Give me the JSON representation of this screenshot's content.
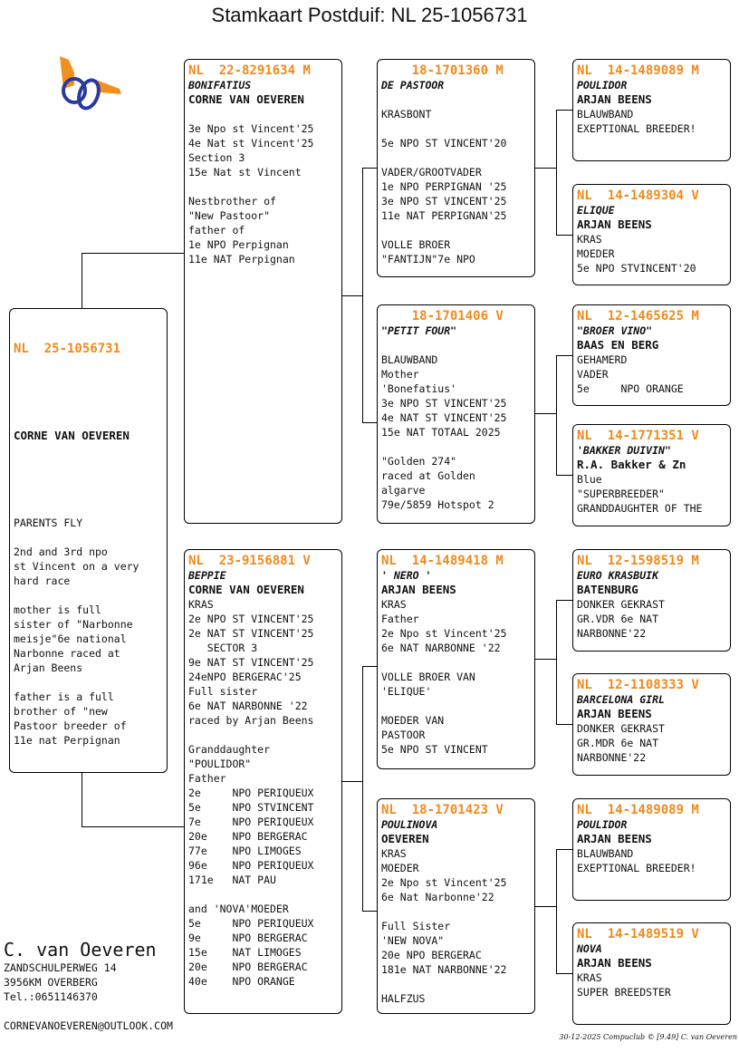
{
  "title": "Stamkaart Postduif: NL  25-1056731",
  "logo": {
    "colors": {
      "orange": "#f0901e",
      "blue": "#2a3a9c"
    }
  },
  "main": {
    "ring": "NL  25-1056731",
    "owner": "CORNE VAN OEVEREN",
    "text": "PARENTS FLY\n\n2nd and 3rd npo\nst Vincent on a very\nhard race\n\nmother is full\nsister of \"Narbonne\nmeisje\"6e national\nNarbonne raced at\nArjan Beens\n\nfather is a full\nbrother of \"new\nPastoor breeder of\n11e nat Perpignan"
  },
  "sire": {
    "ring": "NL  22-8291634 M",
    "name": "BONIFATIUS",
    "owner": "CORNE VAN OEVEREN",
    "text": "\n3e Npo st Vincent'25\n4e Nat st Vincent'25\nSection 3\n15e Nat st Vincent\n\nNestbrother of\n\"New Pastoor\"\nfather of\n1e NPO Perpignan\n11e NAT Perpignan"
  },
  "dam": {
    "ring": "NL  23-9156881 V",
    "name": "BEPPIE",
    "owner": "CORNE VAN OEVEREN",
    "text": "KRAS\n2e NPO ST VINCENT'25\n2e NAT ST VINCENT'25\n   SECTOR 3\n9e NAT ST VINCENT'25\n24eNPO BERGERAC'25\nFull sister\n6e NAT NARBONNE '22\nraced by Arjan Beens\n\nGranddaughter\n\"POULIDOR\"\nFather\n2e     NPO PERIQUEUX\n5e     NPO STVINCENT\n7e     NPO PERIQUEUX\n20e    NPO BERGERAC\n77e    NPO LIMOGES\n96e    NPO PERIQUEUX\n171e   NAT PAU\n\nand 'NOVA'MOEDER\n5e     NPO PERIQUEUX\n9e     NPO BERGERAC\n15e    NAT LIMOGES\n20e    NPO BERGERAC\n40e    NPO ORANGE"
  },
  "gp": [
    {
      "ring": "    18-1701360 M",
      "name": "DE PASTOOR",
      "owner": "",
      "text": "\nKRASBONT\n\n5e NPO ST VINCENT'20\n\nVADER/GROOTVADER\n1e NPO PERPIGNAN '25\n3e NPO ST VINCENT'25\n11e NAT PERPIGNAN'25\n\nVOLLE BROER\n\"FANTIJN\"7e NPO"
    },
    {
      "ring": "    18-1701406 V",
      "name": "\"PETIT FOUR\"",
      "owner": "",
      "text": "\nBLAUWBAND\nMother\n'Bonefatius'\n3e NPO ST VINCENT'25\n4e NAT ST VINCENT'25\n15e NAT TOTAAL 2025\n\n\"Golden 274\"\nraced at Golden\nalgarve\n79e/5859 Hotspot 2"
    },
    {
      "ring": "NL  14-1489418 M",
      "name": "' NERO '",
      "owner": "ARJAN BEENS",
      "text": "KRAS\nFather\n2e Npo st Vincent'25\n6e NAT NARBONNE '22\n\nVOLLE BROER VAN\n'ELIQUE'\n\nMOEDER VAN\nPASTOOR\n5e NPO ST VINCENT"
    },
    {
      "ring": "NL  18-1701423 V",
      "name": "POULINOVA",
      "owner": "OEVEREN",
      "text": "KRAS\nMOEDER\n2e Npo st Vincent'25\n6e Nat Narbonne'22\n\nFull Sister\n'NEW NOVA\"\n20e NPO BERGERAC\n181e NAT NARBONNE'22\n\nHALFZUS"
    }
  ],
  "ggp": [
    {
      "ring": "NL  14-1489089 M",
      "name": "POULIDOR",
      "owner": "ARJAN BEENS",
      "text": "BLAUWBAND\nEXEPTIONAL BREEDER!"
    },
    {
      "ring": "NL  14-1489304 V",
      "name": "ELIQUE",
      "owner": "ARJAN BEENS",
      "text": "KRAS\nMOEDER\n5e NPO STVINCENT'20"
    },
    {
      "ring": "NL  12-1465625 M",
      "name": "\"BROER VINO\"",
      "owner": "BAAS EN BERG",
      "text": "GEHAMERD\nVADER\n5e     NPO ORANGE"
    },
    {
      "ring": "NL  14-1771351 V",
      "name": "'BAKKER DUIVIN\"",
      "owner": "R.A. Bakker & Zn",
      "text": "Blue\n\"SUPERBREEDER\"\nGRANDDAUGHTER OF THE"
    },
    {
      "ring": "NL  12-1598519 M",
      "name": "EURO KRASBUIK",
      "owner": "BATENBURG",
      "text": "DONKER GEKRAST\nGR.VDR 6e NAT\nNARBONNE'22"
    },
    {
      "ring": "NL  12-1108333 V",
      "name": "BARCELONA GIRL",
      "owner": "ARJAN BEENS",
      "text": "DONKER GEKRAST\nGR.MDR 6e NAT\nNARBONNE'22"
    },
    {
      "ring": "NL  14-1489089 M",
      "name": "POULIDOR",
      "owner": "ARJAN BEENS",
      "text": "BLAUWBAND\nEXEPTIONAL BREEDER!"
    },
    {
      "ring": "NL  14-1489519 V",
      "name": "NOVA",
      "owner": "ARJAN BEENS",
      "text": "KRAS\nSUPER BREEDSTER"
    }
  ],
  "address": {
    "name": "C. van Oeveren",
    "street": "ZANDSCHULPERWEG 14",
    "city": "3956KM  OVERBERG",
    "phone": "Tel.:0651146370",
    "email": "CORNEVANOEVEREN@OUTLOOK.COM"
  },
  "footer": "30-12-2025   Compuclub © [9.49]  C. van Oeveren"
}
